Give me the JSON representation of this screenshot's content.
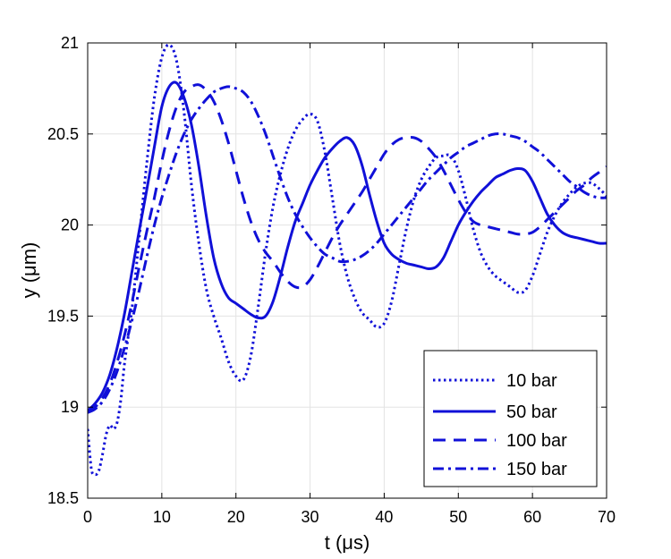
{
  "chart_data": {
    "type": "line",
    "title": "",
    "xlabel": "t (μs)",
    "ylabel": "y (μm)",
    "xlim": [
      0,
      70
    ],
    "ylim": [
      18.5,
      21
    ],
    "xticks": [
      0,
      10,
      20,
      30,
      40,
      50,
      60,
      70
    ],
    "yticks": [
      18.5,
      19,
      19.5,
      20,
      20.5,
      21
    ],
    "xtick_labels": [
      "0",
      "10",
      "20",
      "30",
      "40",
      "50",
      "60",
      "70"
    ],
    "ytick_labels": [
      "18.5",
      "19",
      "19.5",
      "20",
      "20.5",
      "21"
    ],
    "grid": true,
    "legend_position": "bottom-right",
    "line_color": "#1010d8",
    "series": [
      {
        "name": "10 bar",
        "style": "dotted",
        "points": [
          [
            0,
            18.88
          ],
          [
            0.5,
            18.66
          ],
          [
            1,
            18.63
          ],
          [
            1.5,
            18.65
          ],
          [
            2,
            18.74
          ],
          [
            2.5,
            18.85
          ],
          [
            3,
            18.9
          ],
          [
            3.5,
            18.88
          ],
          [
            4,
            18.92
          ],
          [
            4.5,
            19.05
          ],
          [
            5,
            19.25
          ],
          [
            6,
            19.55
          ],
          [
            7,
            19.95
          ],
          [
            8,
            20.35
          ],
          [
            9,
            20.7
          ],
          [
            10,
            20.92
          ],
          [
            11,
            20.99
          ],
          [
            12,
            20.9
          ],
          [
            13,
            20.62
          ],
          [
            14,
            20.22
          ],
          [
            15,
            19.9
          ],
          [
            16,
            19.65
          ],
          [
            17,
            19.5
          ],
          [
            18,
            19.38
          ],
          [
            19,
            19.25
          ],
          [
            20,
            19.17
          ],
          [
            21,
            19.15
          ],
          [
            22,
            19.28
          ],
          [
            23,
            19.55
          ],
          [
            24,
            19.85
          ],
          [
            25,
            20.1
          ],
          [
            26,
            20.28
          ],
          [
            27,
            20.42
          ],
          [
            28,
            20.52
          ],
          [
            29,
            20.58
          ],
          [
            30,
            20.61
          ],
          [
            31,
            20.57
          ],
          [
            32,
            20.4
          ],
          [
            33,
            20.15
          ],
          [
            34,
            19.9
          ],
          [
            35,
            19.72
          ],
          [
            36,
            19.6
          ],
          [
            37,
            19.52
          ],
          [
            38,
            19.48
          ],
          [
            39,
            19.44
          ],
          [
            40,
            19.46
          ],
          [
            41,
            19.58
          ],
          [
            42,
            19.78
          ],
          [
            43,
            19.98
          ],
          [
            44,
            20.14
          ],
          [
            45,
            20.25
          ],
          [
            46,
            20.32
          ],
          [
            47,
            20.37
          ],
          [
            48,
            20.38
          ],
          [
            49,
            20.38
          ],
          [
            50,
            20.3
          ],
          [
            51,
            20.15
          ],
          [
            52,
            19.98
          ],
          [
            53,
            19.85
          ],
          [
            54,
            19.77
          ],
          [
            55,
            19.72
          ],
          [
            56,
            19.69
          ],
          [
            57,
            19.66
          ],
          [
            58,
            19.63
          ],
          [
            59,
            19.64
          ],
          [
            60,
            19.72
          ],
          [
            61,
            19.84
          ],
          [
            62,
            19.96
          ],
          [
            63,
            20.05
          ],
          [
            64,
            20.12
          ],
          [
            65,
            20.17
          ],
          [
            66,
            20.21
          ],
          [
            67,
            20.23
          ],
          [
            68,
            20.23
          ],
          [
            69,
            20.2
          ],
          [
            70,
            20.16
          ]
        ]
      },
      {
        "name": "50 bar",
        "style": "solid",
        "points": [
          [
            0,
            18.98
          ],
          [
            1,
            19.02
          ],
          [
            2,
            19.08
          ],
          [
            3,
            19.18
          ],
          [
            4,
            19.33
          ],
          [
            5,
            19.52
          ],
          [
            6,
            19.75
          ],
          [
            7,
            19.98
          ],
          [
            8,
            20.2
          ],
          [
            9,
            20.43
          ],
          [
            10,
            20.65
          ],
          [
            11,
            20.76
          ],
          [
            12,
            20.78
          ],
          [
            13,
            20.7
          ],
          [
            14,
            20.55
          ],
          [
            15,
            20.32
          ],
          [
            16,
            20.05
          ],
          [
            17,
            19.82
          ],
          [
            18,
            19.68
          ],
          [
            19,
            19.6
          ],
          [
            20,
            19.57
          ],
          [
            21,
            19.54
          ],
          [
            22,
            19.51
          ],
          [
            23,
            19.49
          ],
          [
            24,
            19.5
          ],
          [
            25,
            19.58
          ],
          [
            26,
            19.72
          ],
          [
            27,
            19.88
          ],
          [
            28,
            20.02
          ],
          [
            29,
            20.12
          ],
          [
            30,
            20.22
          ],
          [
            31,
            20.3
          ],
          [
            32,
            20.37
          ],
          [
            33,
            20.42
          ],
          [
            34,
            20.46
          ],
          [
            35,
            20.48
          ],
          [
            36,
            20.44
          ],
          [
            37,
            20.33
          ],
          [
            38,
            20.17
          ],
          [
            39,
            20.02
          ],
          [
            40,
            19.9
          ],
          [
            41,
            19.84
          ],
          [
            42,
            19.81
          ],
          [
            43,
            19.79
          ],
          [
            44,
            19.78
          ],
          [
            45,
            19.77
          ],
          [
            46,
            19.76
          ],
          [
            47,
            19.77
          ],
          [
            48,
            19.82
          ],
          [
            49,
            19.91
          ],
          [
            50,
            20.0
          ],
          [
            51,
            20.07
          ],
          [
            52,
            20.13
          ],
          [
            53,
            20.18
          ],
          [
            54,
            20.22
          ],
          [
            55,
            20.26
          ],
          [
            56,
            20.28
          ],
          [
            57,
            20.3
          ],
          [
            58,
            20.31
          ],
          [
            59,
            20.3
          ],
          [
            60,
            20.24
          ],
          [
            61,
            20.15
          ],
          [
            62,
            20.06
          ],
          [
            63,
            20.0
          ],
          [
            64,
            19.96
          ],
          [
            65,
            19.94
          ],
          [
            66,
            19.93
          ],
          [
            67,
            19.92
          ],
          [
            68,
            19.91
          ],
          [
            69,
            19.9
          ],
          [
            70,
            19.9
          ]
        ]
      },
      {
        "name": "100 bar",
        "style": "dashed",
        "points": [
          [
            0,
            18.97
          ],
          [
            1,
            19.0
          ],
          [
            2,
            19.05
          ],
          [
            3,
            19.13
          ],
          [
            4,
            19.25
          ],
          [
            5,
            19.4
          ],
          [
            6,
            19.58
          ],
          [
            7,
            19.78
          ],
          [
            8,
            19.97
          ],
          [
            9,
            20.15
          ],
          [
            10,
            20.35
          ],
          [
            11,
            20.52
          ],
          [
            12,
            20.65
          ],
          [
            13,
            20.73
          ],
          [
            14,
            20.76
          ],
          [
            15,
            20.77
          ],
          [
            16,
            20.74
          ],
          [
            17,
            20.68
          ],
          [
            18,
            20.58
          ],
          [
            19,
            20.45
          ],
          [
            20,
            20.3
          ],
          [
            21,
            20.15
          ],
          [
            22,
            20.02
          ],
          [
            23,
            19.92
          ],
          [
            24,
            19.85
          ],
          [
            25,
            19.8
          ],
          [
            26,
            19.74
          ],
          [
            27,
            19.69
          ],
          [
            28,
            19.66
          ],
          [
            29,
            19.66
          ],
          [
            30,
            19.7
          ],
          [
            31,
            19.77
          ],
          [
            32,
            19.85
          ],
          [
            33,
            19.93
          ],
          [
            34,
            20.0
          ],
          [
            35,
            20.06
          ],
          [
            36,
            20.12
          ],
          [
            37,
            20.18
          ],
          [
            38,
            20.25
          ],
          [
            39,
            20.32
          ],
          [
            40,
            20.39
          ],
          [
            41,
            20.44
          ],
          [
            42,
            20.47
          ],
          [
            43,
            20.48
          ],
          [
            44,
            20.48
          ],
          [
            45,
            20.46
          ],
          [
            46,
            20.42
          ],
          [
            47,
            20.37
          ],
          [
            48,
            20.3
          ],
          [
            49,
            20.22
          ],
          [
            50,
            20.14
          ],
          [
            51,
            20.07
          ],
          [
            52,
            20.02
          ],
          [
            53,
            20.0
          ],
          [
            54,
            19.99
          ],
          [
            55,
            19.98
          ],
          [
            56,
            19.97
          ],
          [
            57,
            19.96
          ],
          [
            58,
            19.95
          ],
          [
            59,
            19.95
          ],
          [
            60,
            19.96
          ],
          [
            61,
            19.99
          ],
          [
            62,
            20.03
          ],
          [
            63,
            20.07
          ],
          [
            64,
            20.11
          ],
          [
            65,
            20.15
          ],
          [
            66,
            20.19
          ],
          [
            67,
            20.22
          ],
          [
            68,
            20.26
          ],
          [
            69,
            20.29
          ],
          [
            70,
            20.32
          ]
        ]
      },
      {
        "name": "150 bar",
        "style": "dashdot",
        "points": [
          [
            0,
            18.97
          ],
          [
            1,
            18.99
          ],
          [
            2,
            19.03
          ],
          [
            3,
            19.1
          ],
          [
            4,
            19.2
          ],
          [
            5,
            19.33
          ],
          [
            6,
            19.48
          ],
          [
            7,
            19.65
          ],
          [
            8,
            19.83
          ],
          [
            9,
            20.0
          ],
          [
            10,
            20.15
          ],
          [
            11,
            20.28
          ],
          [
            12,
            20.4
          ],
          [
            13,
            20.5
          ],
          [
            14,
            20.58
          ],
          [
            15,
            20.64
          ],
          [
            16,
            20.69
          ],
          [
            17,
            20.73
          ],
          [
            18,
            20.75
          ],
          [
            19,
            20.76
          ],
          [
            20,
            20.75
          ],
          [
            21,
            20.73
          ],
          [
            22,
            20.68
          ],
          [
            23,
            20.6
          ],
          [
            24,
            20.5
          ],
          [
            25,
            20.38
          ],
          [
            26,
            20.26
          ],
          [
            27,
            20.15
          ],
          [
            28,
            20.06
          ],
          [
            29,
            19.99
          ],
          [
            30,
            19.93
          ],
          [
            31,
            19.88
          ],
          [
            32,
            19.84
          ],
          [
            33,
            19.82
          ],
          [
            34,
            19.8
          ],
          [
            35,
            19.8
          ],
          [
            36,
            19.81
          ],
          [
            37,
            19.83
          ],
          [
            38,
            19.86
          ],
          [
            39,
            19.9
          ],
          [
            40,
            19.95
          ],
          [
            41,
            20.0
          ],
          [
            42,
            20.05
          ],
          [
            43,
            20.1
          ],
          [
            44,
            20.15
          ],
          [
            45,
            20.2
          ],
          [
            46,
            20.25
          ],
          [
            47,
            20.29
          ],
          [
            48,
            20.33
          ],
          [
            49,
            20.37
          ],
          [
            50,
            20.4
          ],
          [
            51,
            20.43
          ],
          [
            52,
            20.45
          ],
          [
            53,
            20.47
          ],
          [
            54,
            20.49
          ],
          [
            55,
            20.5
          ],
          [
            56,
            20.5
          ],
          [
            57,
            20.49
          ],
          [
            58,
            20.48
          ],
          [
            59,
            20.46
          ],
          [
            60,
            20.43
          ],
          [
            61,
            20.4
          ],
          [
            62,
            20.36
          ],
          [
            63,
            20.32
          ],
          [
            64,
            20.28
          ],
          [
            65,
            20.24
          ],
          [
            66,
            20.21
          ],
          [
            67,
            20.18
          ],
          [
            68,
            20.16
          ],
          [
            69,
            20.15
          ],
          [
            70,
            20.15
          ]
        ]
      }
    ]
  }
}
